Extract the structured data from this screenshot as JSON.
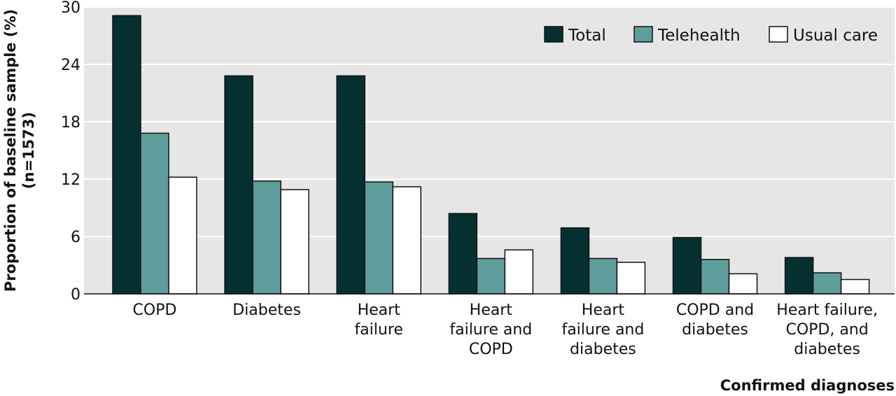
{
  "chart_data": {
    "type": "bar",
    "categories": [
      [
        "COPD"
      ],
      [
        "Diabetes"
      ],
      [
        "Heart",
        "failure"
      ],
      [
        "Heart",
        "failure and",
        "COPD"
      ],
      [
        "Heart",
        "failure and",
        "diabetes"
      ],
      [
        "COPD and",
        "diabetes"
      ],
      [
        "Heart failure,",
        "COPD, and",
        "diabetes"
      ]
    ],
    "series": [
      {
        "name": "Total",
        "color": "#05302f",
        "values": [
          29.1,
          22.8,
          22.8,
          8.4,
          6.9,
          5.9,
          3.8
        ]
      },
      {
        "name": "Telehealth",
        "color": "#5e9e9a",
        "values": [
          16.8,
          11.8,
          11.7,
          3.7,
          3.7,
          3.6,
          2.2
        ]
      },
      {
        "name": "Usual care",
        "color": "#ffffff",
        "values": [
          12.2,
          10.9,
          11.2,
          4.6,
          3.3,
          2.1,
          1.5
        ]
      }
    ],
    "ylabel": [
      "Proportion of baseline sample (%)",
      "(n=1573)"
    ],
    "xlabel": "Confirmed diagnoses",
    "ylim": [
      0,
      30
    ],
    "yticks": [
      0,
      6,
      12,
      18,
      24,
      30
    ],
    "grid": true,
    "legend_position": "top-right"
  }
}
